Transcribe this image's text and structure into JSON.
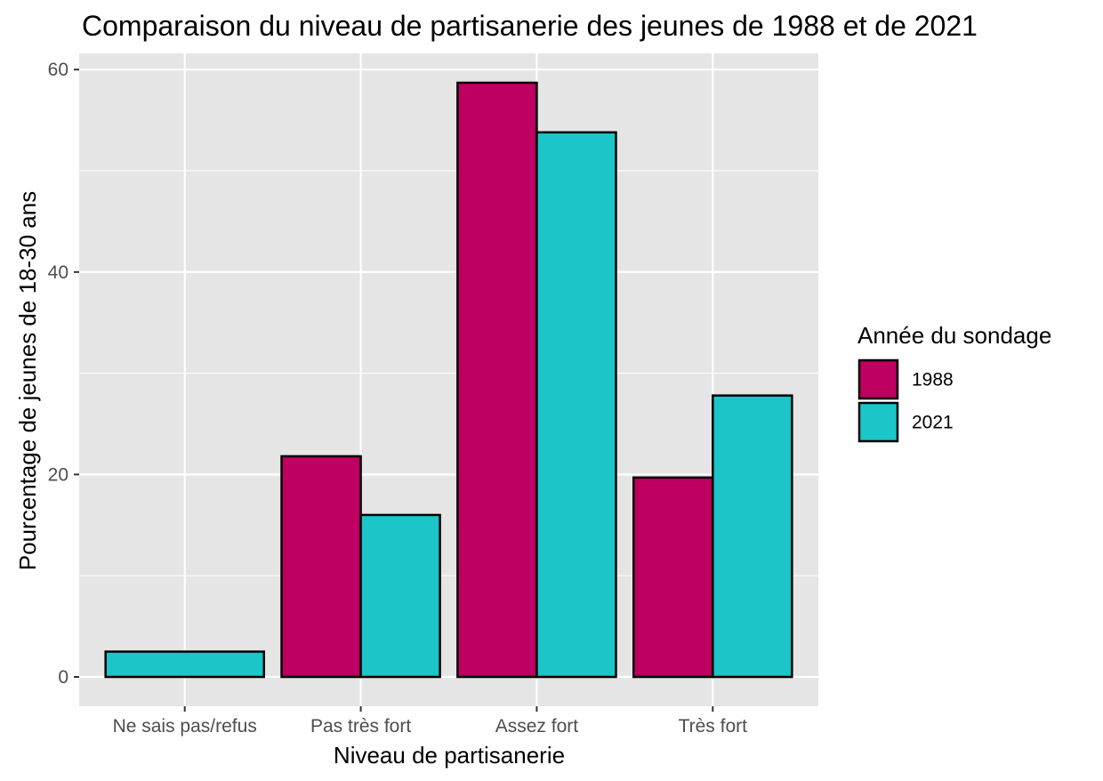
{
  "chart_data": {
    "type": "bar",
    "title": "Comparaison du niveau de partisanerie des jeunes de 1988 et de 2021",
    "xlabel": "Niveau de partisanerie",
    "ylabel": "Pourcentage de jeunes de 18-30 ans",
    "categories": [
      "Ne sais pas/refus",
      "Pas très fort",
      "Assez fort",
      "Très fort"
    ],
    "series": [
      {
        "name": "1988",
        "color": "#be0060",
        "values": [
          null,
          21.8,
          58.7,
          19.7
        ]
      },
      {
        "name": "2021",
        "color": "#1cc5c8",
        "values": [
          2.5,
          16.0,
          53.8,
          27.8
        ]
      }
    ],
    "ylim": [
      -2.9,
      61.6
    ],
    "yticks": [
      "0",
      "20",
      "40",
      "60"
    ],
    "legend": {
      "title": "Année du sondage",
      "placement": "right"
    },
    "grid": true,
    "panel_background": "#e5e5e5"
  }
}
